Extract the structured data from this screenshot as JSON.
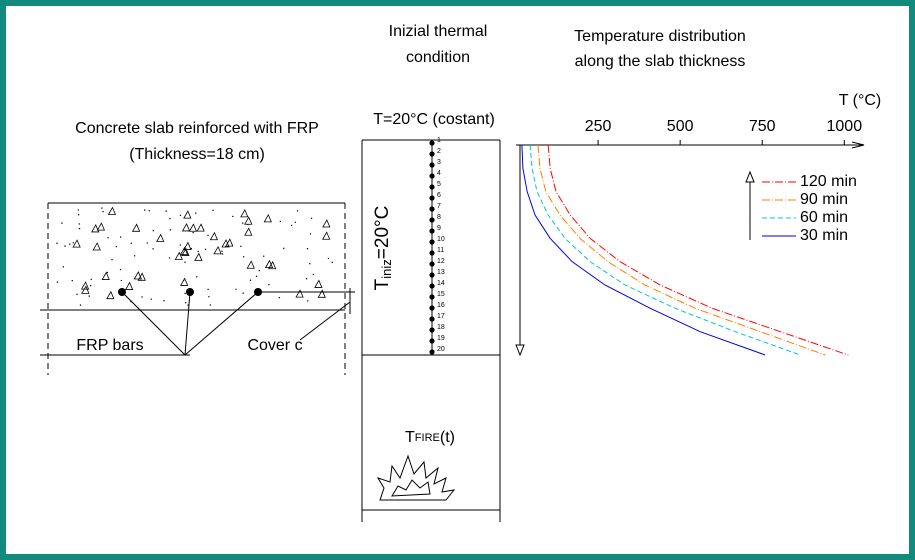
{
  "left": {
    "title": "Concrete slab reinforced with FRP",
    "subtitle": "(Thickness=18 cm)",
    "bars_label": "FRP bars",
    "cover_label": "Cover c"
  },
  "middle": {
    "title_line1": "Inizial thermal",
    "title_line2": "condition",
    "top_condition": "T=20°C (costant)",
    "initial_temp": {
      "symbol": "T",
      "subscript": "iniz",
      "value": "=20°C"
    },
    "fire": {
      "symbol": "T",
      "subscript": "FIRE",
      "suffix": "(t)"
    },
    "nodes": [
      "1",
      "2",
      "3",
      "4",
      "5",
      "6",
      "7",
      "8",
      "9",
      "10",
      "11",
      "12",
      "13",
      "14",
      "15",
      "16",
      "17",
      "18",
      "19",
      "20"
    ]
  },
  "chart_data": {
    "type": "line",
    "title": "Temperature distribution",
    "subtitle": "along the slab thickness",
    "y_label": "T (°C)",
    "ylim": [
      0,
      1060
    ],
    "yticks": [
      250,
      500,
      750,
      1000
    ],
    "xlim": [
      0,
      18
    ],
    "x": [
      0,
      2,
      4,
      6,
      8,
      10,
      12,
      14,
      16,
      18
    ],
    "series": [
      {
        "name": "120 min",
        "color": "#ff0000",
        "values": [
          98,
          104,
          122,
          165,
          226,
          317,
          439,
          598,
          805,
          1012
        ]
      },
      {
        "name": "90 min",
        "color": "#ff8000",
        "values": [
          67,
          73,
          91,
          134,
          195,
          280,
          393,
          546,
          744,
          942
        ]
      },
      {
        "name": "60 min",
        "color": "#00c8c8",
        "values": [
          43,
          49,
          64,
          98,
          149,
          226,
          332,
          485,
          668,
          866
        ]
      },
      {
        "name": "30 min",
        "color": "#0000e0",
        "values": [
          18,
          21,
          34,
          58,
          104,
          171,
          271,
          409,
          561,
          759
        ]
      }
    ]
  }
}
